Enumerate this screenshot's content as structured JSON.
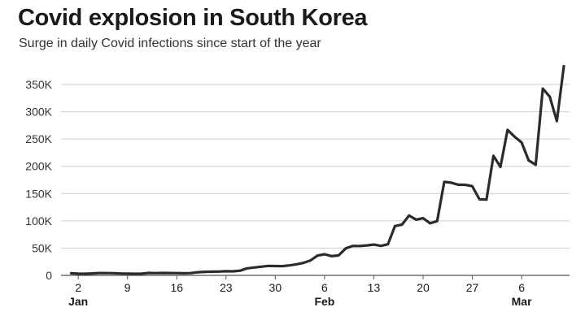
{
  "chart_data": {
    "type": "line",
    "title": "Covid explosion in South Korea",
    "subtitle": "Surge in daily Covid infections since start of the year",
    "xlabel": "",
    "ylabel": "",
    "ylim": [
      0,
      350000
    ],
    "y_ticks": [
      {
        "value": 0,
        "label": "0"
      },
      {
        "value": 50000,
        "label": "50K"
      },
      {
        "value": 100000,
        "label": "100K"
      },
      {
        "value": 150000,
        "label": "150K"
      },
      {
        "value": 200000,
        "label": "200K"
      },
      {
        "value": 250000,
        "label": "250K"
      },
      {
        "value": 300000,
        "label": "300K"
      },
      {
        "value": 350000,
        "label": "350K"
      }
    ],
    "x_start": "2022-01-01",
    "x_end": "2022-03-10",
    "x_ticks": [
      {
        "date": "2022-01-02",
        "label": "2",
        "month": "Jan"
      },
      {
        "date": "2022-01-09",
        "label": "9"
      },
      {
        "date": "2022-01-16",
        "label": "16"
      },
      {
        "date": "2022-01-23",
        "label": "23"
      },
      {
        "date": "2022-01-30",
        "label": "30"
      },
      {
        "date": "2022-02-06",
        "label": "6",
        "month": "Feb"
      },
      {
        "date": "2022-02-13",
        "label": "13"
      },
      {
        "date": "2022-02-20",
        "label": "20"
      },
      {
        "date": "2022-02-27",
        "label": "27"
      },
      {
        "date": "2022-03-06",
        "label": "6",
        "month": "Mar"
      }
    ],
    "grid": true,
    "legend": "none",
    "series": [
      {
        "color": "#2b2b2b",
        "points": [
          [
            "2022-01-01",
            3800
          ],
          [
            "2022-01-02",
            3100
          ],
          [
            "2022-01-03",
            3000
          ],
          [
            "2022-01-04",
            3500
          ],
          [
            "2022-01-05",
            4300
          ],
          [
            "2022-01-06",
            4200
          ],
          [
            "2022-01-07",
            4000
          ],
          [
            "2022-01-08",
            3400
          ],
          [
            "2022-01-09",
            3300
          ],
          [
            "2022-01-10",
            3000
          ],
          [
            "2022-01-11",
            3100
          ],
          [
            "2022-01-12",
            4400
          ],
          [
            "2022-01-13",
            4200
          ],
          [
            "2022-01-14",
            4500
          ],
          [
            "2022-01-15",
            4300
          ],
          [
            "2022-01-16",
            4200
          ],
          [
            "2022-01-17",
            3900
          ],
          [
            "2022-01-18",
            4100
          ],
          [
            "2022-01-19",
            5800
          ],
          [
            "2022-01-20",
            6600
          ],
          [
            "2022-01-21",
            6800
          ],
          [
            "2022-01-22",
            7000
          ],
          [
            "2022-01-23",
            7600
          ],
          [
            "2022-01-24",
            7500
          ],
          [
            "2022-01-25",
            8600
          ],
          [
            "2022-01-26",
            13000
          ],
          [
            "2022-01-27",
            14500
          ],
          [
            "2022-01-28",
            16000
          ],
          [
            "2022-01-29",
            17500
          ],
          [
            "2022-01-30",
            17100
          ],
          [
            "2022-01-31",
            17000
          ],
          [
            "2022-02-01",
            18300
          ],
          [
            "2022-02-02",
            20300
          ],
          [
            "2022-02-03",
            22900
          ],
          [
            "2022-02-04",
            27400
          ],
          [
            "2022-02-05",
            36300
          ],
          [
            "2022-02-06",
            38700
          ],
          [
            "2022-02-07",
            35300
          ],
          [
            "2022-02-08",
            36700
          ],
          [
            "2022-02-09",
            49500
          ],
          [
            "2022-02-10",
            54100
          ],
          [
            "2022-02-11",
            53900
          ],
          [
            "2022-02-12",
            54900
          ],
          [
            "2022-02-13",
            56400
          ],
          [
            "2022-02-14",
            54000
          ],
          [
            "2022-02-15",
            57100
          ],
          [
            "2022-02-16",
            90400
          ],
          [
            "2022-02-17",
            93100
          ],
          [
            "2022-02-18",
            109800
          ],
          [
            "2022-02-19",
            102200
          ],
          [
            "2022-02-20",
            104800
          ],
          [
            "2022-02-21",
            95400
          ],
          [
            "2022-02-22",
            99500
          ],
          [
            "2022-02-23",
            171400
          ],
          [
            "2022-02-24",
            170000
          ],
          [
            "2022-02-25",
            166200
          ],
          [
            "2022-02-26",
            166000
          ],
          [
            "2022-02-27",
            163500
          ],
          [
            "2022-02-28",
            139600
          ],
          [
            "2022-03-01",
            138900
          ],
          [
            "2022-03-02",
            219200
          ],
          [
            "2022-03-03",
            198800
          ],
          [
            "2022-03-04",
            266800
          ],
          [
            "2022-03-05",
            254300
          ],
          [
            "2022-03-06",
            243600
          ],
          [
            "2022-03-07",
            210700
          ],
          [
            "2022-03-08",
            202700
          ],
          [
            "2022-03-09",
            342400
          ],
          [
            "2022-03-10",
            327500
          ],
          [
            "2022-03-11",
            282900
          ],
          [
            "2022-03-12",
            383700
          ]
        ]
      }
    ]
  }
}
